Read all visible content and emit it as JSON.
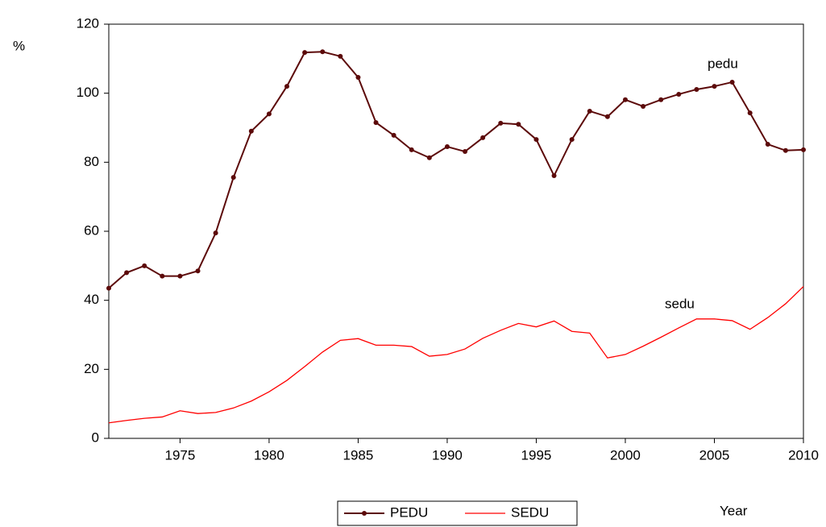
{
  "chart_data": {
    "type": "line",
    "y_label": "%",
    "x_label": "Year",
    "annotations": [
      "pedu",
      "sedu"
    ],
    "x": [
      1971,
      1972,
      1973,
      1974,
      1975,
      1976,
      1977,
      1978,
      1979,
      1980,
      1981,
      1982,
      1983,
      1984,
      1985,
      1986,
      1987,
      1988,
      1989,
      1990,
      1991,
      1992,
      1993,
      1994,
      1995,
      1996,
      1997,
      1998,
      1999,
      2000,
      2001,
      2002,
      2003,
      2004,
      2005,
      2006,
      2007,
      2008,
      2009,
      2010
    ],
    "series": [
      {
        "name": "PEDU",
        "color": "#5c0a0a",
        "markers": true,
        "values": [
          43.5,
          48,
          50,
          47,
          47,
          48.5,
          59.5,
          75.6,
          89,
          94,
          102,
          111.8,
          112,
          110.7,
          104.6,
          91.5,
          87.8,
          83.6,
          81.3,
          84.5,
          83.1,
          87.1,
          91.3,
          91,
          86.6,
          76.1,
          86.6,
          94.8,
          93.2,
          98.1,
          96.2,
          98.1,
          99.7,
          101.1,
          102,
          103.2,
          94.3,
          85.2,
          83.4,
          83.6
        ]
      },
      {
        "name": "SEDU",
        "color": "#ff0000",
        "markers": false,
        "values": [
          4.5,
          5.2,
          5.8,
          6.2,
          8,
          7.2,
          7.5,
          8.8,
          10.8,
          13.5,
          16.8,
          20.8,
          25,
          28.4,
          28.9,
          27,
          27,
          26.6,
          23.8,
          24.3,
          25.9,
          29,
          31.3,
          33.3,
          32.3,
          34,
          31,
          30.5,
          23.3,
          24.3,
          26.7,
          29.3,
          32,
          34.6,
          34.6,
          34.1,
          31.6,
          35,
          39,
          44
        ]
      }
    ],
    "xlim": [
      1971,
      2010
    ],
    "xticks": [
      1975,
      1980,
      1985,
      1990,
      1995,
      2000,
      2005,
      2010
    ],
    "ylim": [
      0,
      120
    ],
    "yticks": [
      0,
      20,
      40,
      60,
      80,
      100,
      120
    ]
  }
}
